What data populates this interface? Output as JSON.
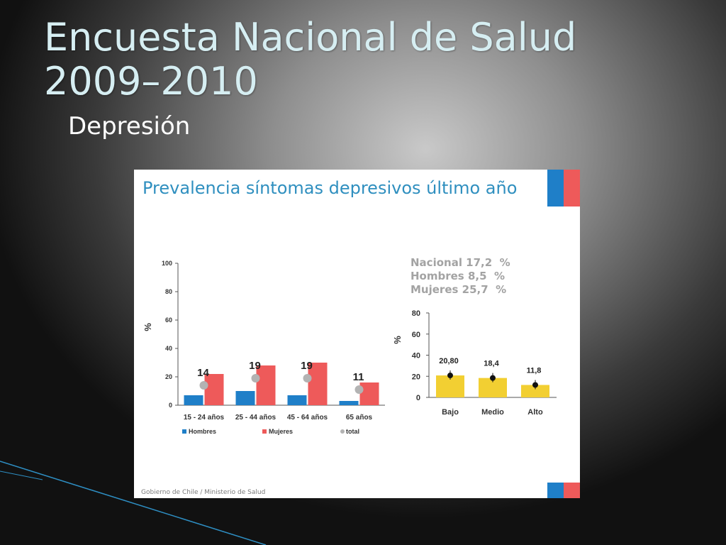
{
  "slide": {
    "title": "Encuesta Nacional de Salud 2009–2010",
    "subtitle": "Depresión"
  },
  "panel": {
    "title": "Prevalencia síntomas depresivos último año",
    "footer": "Gobierno de Chile / Ministerio de Salud",
    "stats": [
      "Nacional 17,2  %",
      "Hombres 8,5  %",
      "Mujeres 25,7  %"
    ]
  },
  "colors": {
    "title_text": "#d6eef2",
    "panel_title": "#2f8fbf",
    "hombres": "#1f7fc8",
    "mujeres": "#ee5a5a",
    "total": "#b3b3b3",
    "education": "#f2cf32",
    "flag_blue": "#1f7fc8",
    "flag_red": "#ee5a5a"
  },
  "chart_data": [
    {
      "type": "bar",
      "categories": [
        "15 - 24 años",
        "25 - 44 años",
        "45 - 64 años",
        "65 años"
      ],
      "series": [
        {
          "name": "Hombres",
          "values": [
            7,
            10,
            7,
            3
          ],
          "color_key": "hombres"
        },
        {
          "name": "Mujeres",
          "values": [
            22,
            28,
            30,
            16
          ],
          "color_key": "mujeres"
        },
        {
          "name": "total",
          "marker": "circle",
          "values": [
            14,
            19,
            19,
            11
          ],
          "color_key": "total"
        }
      ],
      "data_labels": [
        "14",
        "19",
        "19",
        "11"
      ],
      "ylabel": "%",
      "ylim": [
        0,
        100
      ],
      "yticks": [
        "0",
        "20",
        "40",
        "60",
        "80",
        "100"
      ],
      "legend": "bottom"
    },
    {
      "type": "bar",
      "categories": [
        "Bajo",
        "Medio",
        "Alto"
      ],
      "series": [
        {
          "values": [
            20.8,
            18.4,
            11.8
          ],
          "color_key": "education",
          "error_marker": true
        }
      ],
      "data_labels": [
        "20,80",
        "18,4",
        "11,8"
      ],
      "ylabel": "%",
      "ylim": [
        0,
        80
      ],
      "yticks": [
        "0",
        "20",
        "40",
        "60",
        "80"
      ],
      "legend": "none"
    }
  ]
}
